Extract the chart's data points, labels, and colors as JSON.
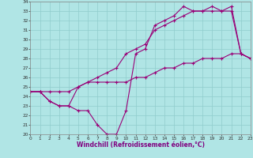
{
  "bg_color": "#b0e5e5",
  "grid_color": "#90cccc",
  "line_color": "#990077",
  "xlim": [
    0,
    23
  ],
  "ylim": [
    20,
    34
  ],
  "xlabel": "Windchill (Refroidissement éolien,°C)",
  "line1_x": [
    0,
    1,
    2,
    3,
    4,
    5,
    6,
    7,
    8,
    9,
    10,
    11,
    12,
    13,
    14,
    15,
    16,
    17,
    18,
    19,
    20,
    21,
    22,
    23
  ],
  "line1_y": [
    24.5,
    24.5,
    23.5,
    23.0,
    23.0,
    22.5,
    22.5,
    21.0,
    20.0,
    20.0,
    22.5,
    28.5,
    29.0,
    31.5,
    32.0,
    32.5,
    33.5,
    33.0,
    33.0,
    33.5,
    33.0,
    33.5,
    28.5,
    28.0
  ],
  "line2_x": [
    0,
    1,
    2,
    3,
    4,
    5,
    6,
    7,
    8,
    9,
    10,
    11,
    12,
    13,
    14,
    15,
    16,
    17,
    18,
    19,
    20,
    21,
    22,
    23
  ],
  "line2_y": [
    24.5,
    24.5,
    23.5,
    23.0,
    23.0,
    25.0,
    25.5,
    26.0,
    26.5,
    27.0,
    28.5,
    29.0,
    29.5,
    31.0,
    31.5,
    32.0,
    32.5,
    33.0,
    33.0,
    33.0,
    33.0,
    33.0,
    28.5,
    28.0
  ],
  "line3_x": [
    0,
    1,
    2,
    3,
    4,
    5,
    6,
    7,
    8,
    9,
    10,
    11,
    12,
    13,
    14,
    15,
    16,
    17,
    18,
    19,
    20,
    21,
    22,
    23
  ],
  "line3_y": [
    24.5,
    24.5,
    24.5,
    24.5,
    24.5,
    25.0,
    25.5,
    25.5,
    25.5,
    25.5,
    25.5,
    26.0,
    26.0,
    26.5,
    27.0,
    27.0,
    27.5,
    27.5,
    28.0,
    28.0,
    28.0,
    28.5,
    28.5,
    28.0
  ]
}
